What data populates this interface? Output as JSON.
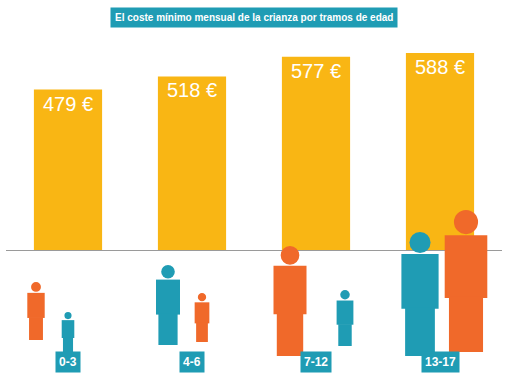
{
  "chart_data": {
    "type": "bar",
    "title": "El coste mínimo mensual de la crianza por tramos de edad",
    "categories": [
      "0-3",
      "4-6",
      "7-12",
      "13-17"
    ],
    "values": [
      479,
      518,
      577,
      588
    ],
    "value_labels": [
      "479 €",
      "518 €",
      "577 €",
      "588 €"
    ],
    "data_labels": true,
    "color": "#f9b614",
    "ylim": [
      0,
      600
    ],
    "grid": false,
    "tick_labels": "x"
  }
}
